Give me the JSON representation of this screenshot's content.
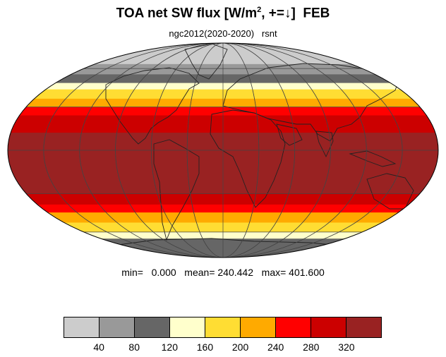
{
  "title": {
    "main": "TOA net SW flux [W/m",
    "sup": "2",
    "rest": ", +=↓]  FEB"
  },
  "subtitle": "ngc2012(2020-2020)   rsnt",
  "stats": "min=   0.000   mean= 240.442   max= 401.600",
  "colorbar": {
    "colors": [
      "#cccccc",
      "#999999",
      "#666666",
      "#ffffcc",
      "#ffdd33",
      "#ffaa00",
      "#ff0000",
      "#cc0000",
      "#992222"
    ],
    "labels": [
      "40",
      "80",
      "120",
      "160",
      "200",
      "240",
      "280",
      "320"
    ]
  },
  "map": {
    "projection": "Mollweide",
    "graticule": "30° spacing",
    "latitude_bands": [
      {
        "from": 90,
        "to": 64,
        "color": "#cccccc"
      },
      {
        "from": 64,
        "to": 55,
        "color": "#999999"
      },
      {
        "from": 55,
        "to": 48,
        "color": "#666666"
      },
      {
        "from": 48,
        "to": 43,
        "color": "#ffffcc"
      },
      {
        "from": 43,
        "to": 36,
        "color": "#ffdd33"
      },
      {
        "from": 36,
        "to": 30,
        "color": "#ffaa00"
      },
      {
        "from": 30,
        "to": 24,
        "color": "#ff0000"
      },
      {
        "from": 24,
        "to": 12,
        "color": "#cc0000"
      },
      {
        "from": 12,
        "to": -30,
        "color": "#992222"
      },
      {
        "from": -30,
        "to": -38,
        "color": "#cc0000"
      },
      {
        "from": -38,
        "to": -44,
        "color": "#ff0000"
      },
      {
        "from": -44,
        "to": -52,
        "color": "#ffaa00"
      },
      {
        "from": -52,
        "to": -60,
        "color": "#ffdd33"
      },
      {
        "from": -60,
        "to": -66,
        "color": "#ffffcc"
      },
      {
        "from": -66,
        "to": -90,
        "color": "#666666"
      }
    ]
  }
}
